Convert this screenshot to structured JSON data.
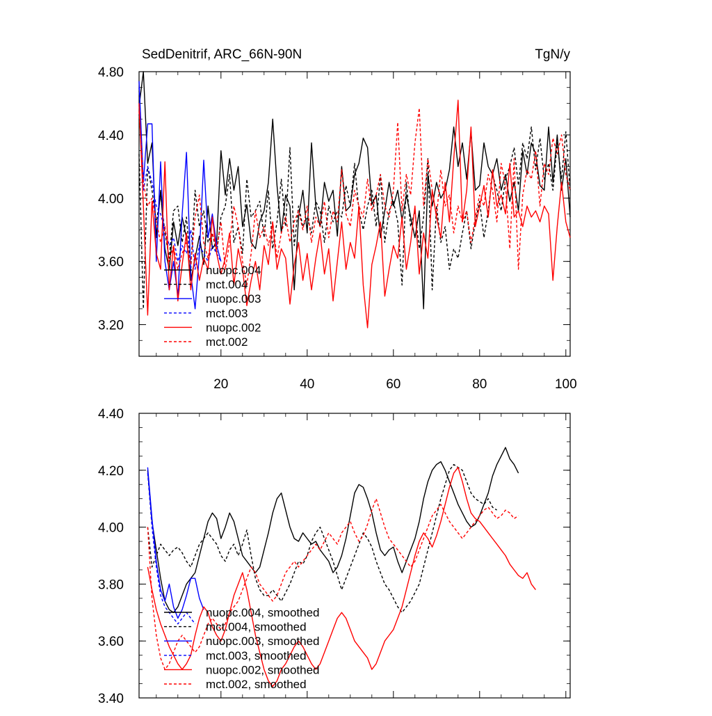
{
  "chart_data": [
    {
      "type": "line",
      "title": "SedDenitrif, ARC_66N-90N",
      "units": "TgN/y",
      "xlim": [
        1,
        101
      ],
      "ylim": [
        3.0,
        4.8
      ],
      "xticks": [
        "20",
        "40",
        "60",
        "80",
        "100"
      ],
      "yticks": [
        "3.20",
        "3.60",
        "4.00",
        "4.40",
        "4.80"
      ],
      "legend": [
        "nuopc.004",
        "mct.004",
        "nuopc.003",
        "mct.003",
        "nuopc.002",
        "mct.002"
      ],
      "series": [
        {
          "name": "nuopc.004",
          "color": "#000000",
          "dash": false,
          "x0": 1,
          "values": [
            4.58,
            4.8,
            4.22,
            4.35,
            3.75,
            4.05,
            3.68,
            3.55,
            3.85,
            3.7,
            3.88,
            3.75,
            3.48,
            3.62,
            3.76,
            3.58,
            3.95,
            3.68,
            3.72,
            4.3,
            4.02,
            4.25,
            4.05,
            4.2,
            3.82,
            3.96,
            3.72,
            3.68,
            3.85,
            3.92,
            4.1,
            4.5,
            4.08,
            3.78,
            4.02,
            3.95,
            3.42,
            3.88,
            4.05,
            3.78,
            4.35,
            3.95,
            3.82,
            4.1,
            3.98,
            4.05,
            3.76,
            4.2,
            3.92,
            3.95,
            4.15,
            4.22,
            4.38,
            4.32,
            3.96,
            4.02,
            3.75,
            3.92,
            4.1,
            3.95,
            4.05,
            3.86,
            4.02,
            3.88,
            3.75,
            3.92,
            3.3,
            4.15,
            3.95,
            4.1,
            4.0,
            4.05,
            4.18,
            4.45,
            4.2,
            4.35,
            4.12,
            4.42,
            4.05,
            4.08,
            4.35,
            4.2,
            4.15,
            4.25,
            4.05,
            4.15,
            3.98,
            4.1,
            3.92,
            4.3,
            4.15,
            4.35,
            4.28,
            4.08,
            4.05,
            4.45,
            4.1,
            4.4,
            4.05,
            4.25,
            3.88
          ]
        },
        {
          "name": "mct.004",
          "color": "#000000",
          "dash": true,
          "x0": 1,
          "values": [
            4.28,
            3.3,
            4.2,
            4.05,
            3.85,
            4.02,
            3.78,
            3.62,
            3.92,
            3.95,
            3.72,
            3.88,
            3.55,
            4.05,
            3.82,
            3.92,
            3.72,
            3.78,
            3.65,
            3.88,
            3.95,
            4.15,
            3.72,
            3.82,
            3.65,
            4.12,
            3.88,
            3.92,
            3.98,
            3.75,
            4.05,
            3.68,
            3.85,
            4.12,
            3.82,
            4.32,
            3.7,
            3.95,
            3.82,
            3.88,
            3.78,
            3.98,
            3.92,
            3.72,
            3.95,
            3.85,
            3.92,
            3.88,
            4.08,
            3.95,
            4.22,
            3.92,
            3.8,
            3.95,
            4.05,
            3.82,
            4.15,
            3.72,
            3.92,
            3.98,
            3.85,
            3.45,
            4.1,
            3.82,
            3.92,
            3.68,
            3.88,
            4.25,
            3.42,
            3.95,
            3.72,
            3.82,
            3.55,
            3.68,
            3.62,
            3.78,
            3.92,
            3.68,
            3.85,
            3.98,
            3.75,
            3.92,
            4.15,
            4.05,
            3.92,
            4.12,
            4.2,
            4.32,
            4.08,
            4.35,
            4.25,
            4.45,
            4.18,
            4.38,
            4.12,
            4.22,
            4.05,
            4.35,
            4.12,
            4.42,
            4.05
          ]
        },
        {
          "name": "nuopc.003",
          "color": "#0000ff",
          "dash": false,
          "x0": 1,
          "values": [
            4.74,
            4.1,
            4.47,
            4.47,
            3.6,
            4.23,
            3.6,
            3.42,
            3.6,
            3.38,
            3.9,
            4.29,
            3.52,
            3.3,
            3.65,
            4.24,
            3.75,
            3.9,
            3.7,
            3.6
          ]
        },
        {
          "name": "mct.003",
          "color": "#0000ff",
          "dash": true,
          "x0": 1,
          "values": [
            4.7,
            4.05,
            4.2,
            4.1,
            3.95,
            3.9,
            3.8,
            3.7,
            3.75,
            3.6,
            3.7,
            3.65,
            3.8,
            3.55,
            3.7,
            3.65,
            3.6,
            3.7,
            3.65,
            3.6
          ]
        },
        {
          "name": "nuopc.002",
          "color": "#ff0000",
          "dash": false,
          "x0": 1,
          "values": [
            4.6,
            3.95,
            3.26,
            3.98,
            3.65,
            3.55,
            4.23,
            3.42,
            3.7,
            3.35,
            3.58,
            3.78,
            3.42,
            3.65,
            3.48,
            3.62,
            3.55,
            3.88,
            3.65,
            3.52,
            3.62,
            3.78,
            3.45,
            3.68,
            3.55,
            3.32,
            3.48,
            3.6,
            3.42,
            3.7,
            3.58,
            3.85,
            3.55,
            3.68,
            3.62,
            3.33,
            3.58,
            3.72,
            3.48,
            3.65,
            3.42,
            3.62,
            3.78,
            3.52,
            3.68,
            3.35,
            3.6,
            3.85,
            3.55,
            3.72,
            3.62,
            3.95,
            3.45,
            3.18,
            3.58,
            3.7,
            3.85,
            3.38,
            3.55,
            3.7,
            3.62,
            3.88,
            3.55,
            3.72,
            3.95,
            3.52,
            3.78,
            3.62,
            4.05,
            3.88,
            3.75,
            4.1,
            3.85,
            4.25,
            4.62,
            3.85,
            4.05,
            4.45,
            3.82,
            3.95,
            4.08,
            3.88,
            4.18,
            3.95,
            4.02,
            3.9,
            4.22,
            3.88,
            3.92,
            3.82,
            3.95,
            3.88,
            3.92,
            3.85,
            3.95,
            3.9,
            3.48,
            3.82,
            4.1,
            3.85,
            3.75
          ]
        },
        {
          "name": "mct.002",
          "color": "#ff0000",
          "dash": true,
          "x0": 1,
          "values": [
            4.55,
            4.1,
            3.95,
            4.0,
            3.85,
            3.72,
            3.82,
            3.6,
            3.7,
            3.55,
            3.65,
            3.72,
            3.58,
            3.88,
            4.02,
            3.72,
            3.62,
            3.78,
            3.68,
            3.85,
            3.55,
            3.72,
            3.95,
            3.82,
            3.6,
            3.45,
            3.65,
            3.92,
            3.75,
            3.82,
            3.7,
            3.85,
            3.62,
            3.78,
            3.88,
            3.72,
            3.85,
            3.92,
            3.8,
            3.95,
            3.72,
            3.88,
            3.82,
            3.98,
            3.75,
            3.92,
            3.85,
            4.18,
            3.9,
            3.82,
            4.05,
            3.95,
            3.88,
            4.12,
            3.92,
            4.02,
            4.15,
            3.95,
            3.88,
            4.05,
            4.48,
            3.92,
            4.15,
            4.02,
            4.35,
            4.57,
            3.95,
            4.25,
            4.05,
            3.88,
            4.18,
            3.95,
            4.02,
            3.78,
            3.95,
            3.85,
            3.92,
            3.72,
            3.88,
            4.02,
            3.95,
            4.15,
            4.05,
            3.85,
            4.22,
            4.08,
            3.68,
            4.25,
            3.55,
            4.02,
            4.18,
            4.12,
            4.3,
            3.95,
            4.22,
            4.15,
            4.38,
            4.28,
            4.4,
            4.15,
            4.05
          ]
        }
      ]
    },
    {
      "type": "line",
      "title": "",
      "xlim": [
        1,
        101
      ],
      "ylim": [
        3.4,
        4.4
      ],
      "yticks": [
        "3.40",
        "3.60",
        "3.80",
        "4.00",
        "4.20",
        "4.40"
      ],
      "legend": [
        "nuopc.004, smoothed",
        "mct.004, smoothed",
        "nuopc.003, smoothed",
        "mct.003, smoothed",
        "nuopc.002, smoothed",
        "mct.002, smoothed"
      ],
      "series": [
        {
          "name": "nuopc.004, smoothed",
          "color": "#000000",
          "dash": false,
          "x0": 3,
          "values": [
            4.2,
            4.02,
            3.92,
            3.82,
            3.74,
            3.71,
            3.7,
            3.72,
            3.76,
            3.8,
            3.82,
            3.84,
            3.9,
            3.96,
            4.02,
            4.05,
            4.03,
            3.96,
            4.0,
            4.05,
            4.02,
            3.96,
            3.9,
            3.88,
            3.86,
            3.84,
            3.86,
            3.92,
            3.98,
            4.05,
            4.1,
            4.12,
            4.06,
            4.0,
            3.96,
            3.95,
            3.98,
            3.96,
            3.94,
            3.95,
            3.92,
            3.9,
            3.88,
            3.84,
            3.86,
            3.9,
            3.96,
            4.04,
            4.12,
            4.15,
            4.14,
            4.1,
            4.05,
            3.98,
            3.92,
            3.9,
            3.92,
            3.93,
            3.88,
            3.84,
            3.88,
            3.92,
            3.96,
            4.02,
            4.1,
            4.16,
            4.2,
            4.22,
            4.23,
            4.2,
            4.16,
            4.12,
            4.08,
            4.05,
            4.02,
            4.0,
            4.01,
            4.04,
            4.08,
            4.12,
            4.18,
            4.22,
            4.25,
            4.28,
            4.24,
            4.22,
            4.19
          ]
        },
        {
          "name": "mct.004, smoothed",
          "color": "#000000",
          "dash": true,
          "x0": 3,
          "values": [
            4.0,
            3.86,
            3.9,
            3.94,
            3.92,
            3.9,
            3.92,
            3.93,
            3.91,
            3.88,
            3.86,
            3.9,
            3.94,
            3.96,
            3.98,
            3.96,
            3.94,
            3.9,
            3.88,
            3.92,
            3.94,
            3.9,
            3.94,
            3.99,
            3.9,
            3.82,
            3.78,
            3.76,
            3.76,
            3.78,
            3.76,
            3.74,
            3.77,
            3.8,
            3.84,
            3.88,
            3.87,
            3.9,
            3.95,
            3.98,
            4.0,
            3.96,
            3.92,
            3.88,
            3.83,
            3.78,
            3.82,
            3.86,
            3.9,
            3.94,
            3.98,
            3.96,
            3.93,
            3.88,
            3.84,
            3.8,
            3.78,
            3.75,
            3.72,
            3.7,
            3.72,
            3.74,
            3.77,
            3.8,
            3.86,
            3.92,
            3.98,
            4.04,
            4.1,
            4.15,
            4.2,
            4.22,
            4.21,
            4.2,
            4.16,
            4.12,
            4.1,
            4.09,
            4.08,
            4.1,
            4.07,
            4.06
          ]
        },
        {
          "name": "nuopc.003, smoothed",
          "color": "#0000ff",
          "dash": false,
          "x0": 3,
          "values": [
            4.21,
            4.03,
            3.88,
            3.78,
            3.74,
            3.8,
            3.72,
            3.68,
            3.71,
            3.76,
            3.82,
            3.82,
            3.75,
            3.71
          ]
        },
        {
          "name": "mct.003, smoothed",
          "color": "#0000ff",
          "dash": true,
          "x0": 3,
          "values": [
            4.19,
            4.0,
            3.86,
            3.76,
            3.72,
            3.7,
            3.68,
            3.66,
            3.68,
            3.7,
            3.68,
            3.66
          ]
        },
        {
          "name": "nuopc.002, smoothed",
          "color": "#ff0000",
          "dash": false,
          "x0": 3,
          "values": [
            3.86,
            3.78,
            3.71,
            3.66,
            3.62,
            3.58,
            3.55,
            3.52,
            3.5,
            3.52,
            3.55,
            3.62,
            3.68,
            3.72,
            3.7,
            3.65,
            3.62,
            3.6,
            3.64,
            3.7,
            3.76,
            3.8,
            3.84,
            3.78,
            3.7,
            3.62,
            3.56,
            3.5,
            3.46,
            3.44,
            3.46,
            3.5,
            3.52,
            3.55,
            3.58,
            3.6,
            3.58,
            3.55,
            3.52,
            3.5,
            3.52,
            3.56,
            3.6,
            3.64,
            3.68,
            3.7,
            3.68,
            3.64,
            3.6,
            3.58,
            3.56,
            3.54,
            3.5,
            3.52,
            3.56,
            3.6,
            3.62,
            3.64,
            3.68,
            3.72,
            3.78,
            3.84,
            3.9,
            3.95,
            3.98,
            3.96,
            3.93,
            3.97,
            4.02,
            4.08,
            4.14,
            4.19,
            4.21,
            4.16,
            4.1,
            4.05,
            4.03,
            4.02,
            4.0,
            3.98,
            3.96,
            3.94,
            3.92,
            3.9,
            3.87,
            3.85,
            3.83,
            3.82,
            3.84,
            3.8,
            3.78
          ]
        },
        {
          "name": "mct.002, smoothed",
          "color": "#ff0000",
          "dash": true,
          "x0": 3,
          "values": [
            4.0,
            3.75,
            3.62,
            3.54,
            3.5,
            3.52,
            3.56,
            3.6,
            3.62,
            3.6,
            3.58,
            3.56,
            3.58,
            3.62,
            3.66,
            3.68,
            3.66,
            3.64,
            3.66,
            3.7,
            3.72,
            3.74,
            3.78,
            3.82,
            3.86,
            3.84,
            3.8,
            3.78,
            3.76,
            3.74,
            3.76,
            3.8,
            3.84,
            3.86,
            3.88,
            3.86,
            3.88,
            3.9,
            3.92,
            3.94,
            3.92,
            3.95,
            3.98,
            3.96,
            3.94,
            3.98,
            4.0,
            4.02,
            3.98,
            3.95,
            3.97,
            4.01,
            4.06,
            4.1,
            4.05,
            4.0,
            3.96,
            3.94,
            3.92,
            3.9,
            3.88,
            3.86,
            3.88,
            3.92,
            3.96,
            4.0,
            4.04,
            4.06,
            4.08,
            4.05,
            4.02,
            4.0,
            3.98,
            3.96,
            3.98,
            4.0,
            4.02,
            4.04,
            4.06,
            4.07,
            4.05,
            4.03,
            4.04,
            4.06,
            4.05,
            4.03,
            4.04
          ]
        }
      ]
    }
  ]
}
